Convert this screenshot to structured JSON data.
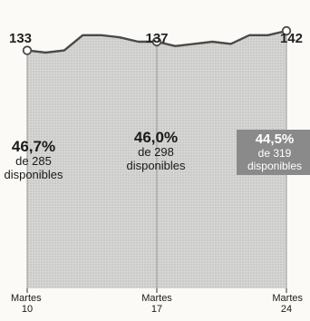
{
  "chart_data": {
    "type": "area",
    "categories": [
      "Martes 10",
      "Martes 17",
      "Martes 24"
    ],
    "tick_labels": [
      {
        "line1": "Martes",
        "line2": "10"
      },
      {
        "line1": "Martes",
        "line2": "17"
      },
      {
        "line1": "Martes",
        "line2": "24"
      }
    ],
    "x": [
      0,
      1,
      2,
      3,
      4,
      5,
      6,
      7,
      8,
      9,
      10,
      11,
      12,
      13,
      14
    ],
    "values": [
      133,
      132,
      133,
      140,
      140,
      139,
      137,
      137,
      135,
      136,
      137,
      136,
      140,
      140,
      142
    ],
    "labeled_points": [
      {
        "index": 0,
        "label": "133"
      },
      {
        "index": 7,
        "label": "137"
      },
      {
        "index": 14,
        "label": "142"
      }
    ],
    "ylim": [
      0,
      155
    ],
    "annotations": [
      {
        "pct": "46,7%",
        "line2": "de 285",
        "line3": "disponibles"
      },
      {
        "pct": "46,0%",
        "line2": "de 298",
        "line3": "disponibles"
      },
      {
        "pct": "44,5%",
        "line2": "de 319",
        "line3": "disponibles"
      }
    ],
    "grid": false,
    "colors": {
      "line": "#4a4a4a",
      "area": "#d2d2d2",
      "note_box": "#8a8a8a"
    }
  }
}
